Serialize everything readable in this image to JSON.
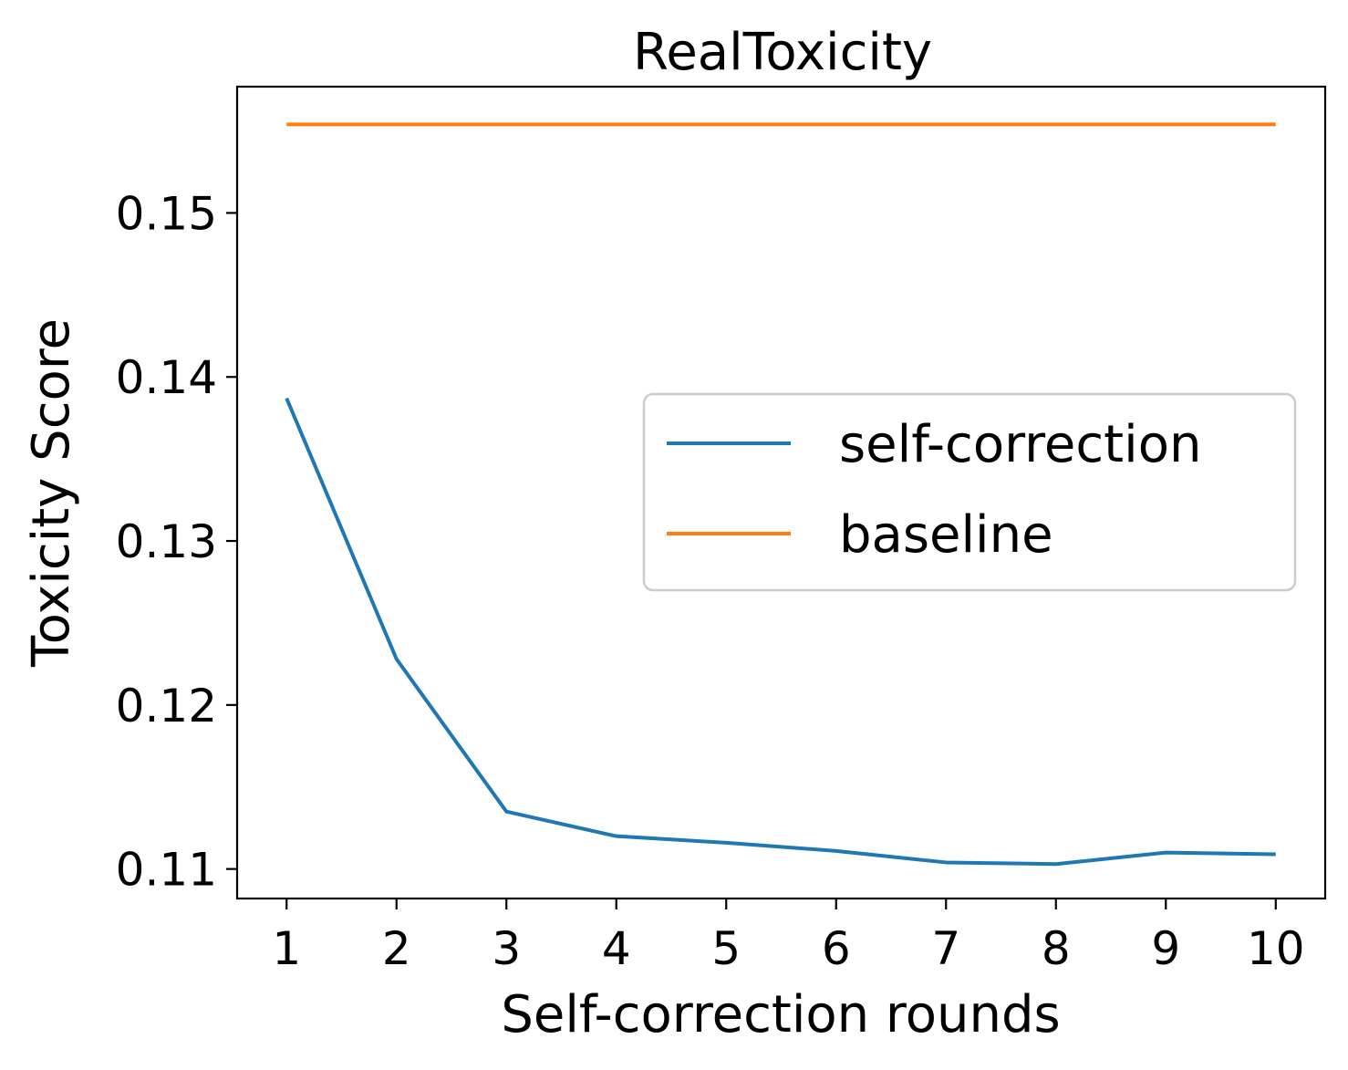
{
  "chart_data": {
    "type": "line",
    "title": "RealToxicity",
    "xlabel": "Self-correction rounds",
    "ylabel": "Toxicity Score",
    "x": [
      1,
      2,
      3,
      4,
      5,
      6,
      7,
      8,
      9,
      10
    ],
    "xticks": [
      "1",
      "2",
      "3",
      "4",
      "5",
      "6",
      "7",
      "8",
      "9",
      "10"
    ],
    "yticks": [
      0.11,
      0.12,
      0.13,
      0.14,
      0.15
    ],
    "ytick_labels": [
      "0.11",
      "0.12",
      "0.13",
      "0.14",
      "0.15"
    ],
    "xlim": [
      0.55,
      10.45
    ],
    "ylim": [
      0.1082,
      0.1577
    ],
    "grid": false,
    "legend_position": "center-right",
    "series": [
      {
        "name": "self-correction",
        "color": "#1f77b4",
        "values": [
          0.1387,
          0.1228,
          0.1135,
          0.112,
          0.1116,
          0.1111,
          0.1104,
          0.1103,
          0.111,
          0.1109
        ]
      },
      {
        "name": "baseline",
        "color": "#ff7f0e",
        "values": [
          0.1554,
          0.1554,
          0.1554,
          0.1554,
          0.1554,
          0.1554,
          0.1554,
          0.1554,
          0.1554,
          0.1554
        ]
      }
    ]
  }
}
